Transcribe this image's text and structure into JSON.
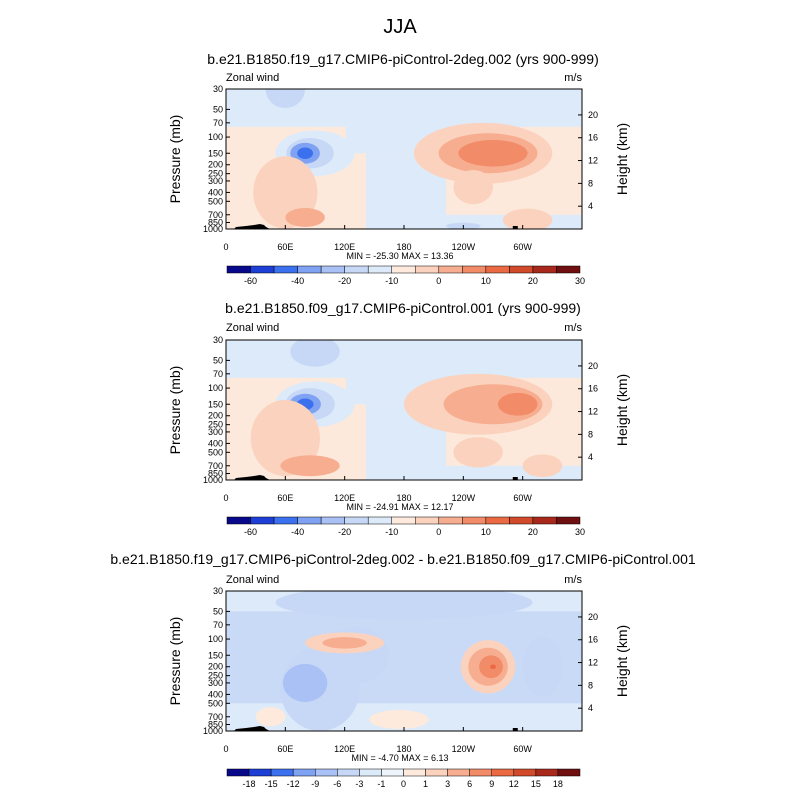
{
  "figure": {
    "title": "JJA"
  },
  "colors": {
    "palette_neg": [
      "#08088a",
      "#1d3fd6",
      "#3b70ee",
      "#7fa2f2",
      "#aac1f5",
      "#c7d8f7",
      "#ddeaf9"
    ],
    "palette_pos": [
      "#fdeadd",
      "#fbd2bd",
      "#f7ad90",
      "#f28b68",
      "#eb6a44",
      "#d14a2a",
      "#a8291c",
      "#6f0f0f"
    ],
    "background_band": "#fdeee2"
  },
  "chart_data": [
    {
      "type": "heatmap",
      "title": "b.e21.B1850.f19_g17.CMIP6-piControl-2deg.002 (yrs 900-999)",
      "left_label": "Zonal wind",
      "right_label": "m/s",
      "ylabel": "Pressure (mb)",
      "ylabel_right": "Height (km)",
      "x_ticks": [
        "0",
        "60E",
        "120E",
        "180",
        "120W",
        "60W"
      ],
      "y_ticks": [
        "30",
        "50",
        "70",
        "100",
        "150",
        "200",
        "250",
        "300",
        "400",
        "500",
        "700",
        "850",
        "1000"
      ],
      "y_ticks_right": [
        "20",
        "16",
        "12",
        "8",
        "4"
      ],
      "stats": "MIN = -25.30  MAX =  13.36",
      "min": -25.3,
      "max": 13.36,
      "colorbar_labels": [
        "-60",
        "-40",
        "-20",
        "-10",
        "0",
        "10",
        "20",
        "30"
      ],
      "background_level": 1,
      "features": [
        {
          "lon": 90,
          "lev": 150,
          "w": 80,
          "h": 1.2,
          "level": 6
        },
        {
          "lon": 85,
          "lev": 150,
          "w": 48,
          "h": 0.8,
          "level": 5
        },
        {
          "lon": 80,
          "lev": 150,
          "w": 30,
          "h": 0.55,
          "level": 3
        },
        {
          "lon": 80,
          "lev": 150,
          "w": 16,
          "h": 0.3,
          "level": 2
        },
        {
          "lon": 60,
          "lev": 30,
          "w": 40,
          "h": 1.0,
          "level": 5
        },
        {
          "lon": 260,
          "lev": 150,
          "w": 140,
          "h": 1.6,
          "level": 8
        },
        {
          "lon": 265,
          "lev": 150,
          "w": 100,
          "h": 1.05,
          "level": 9
        },
        {
          "lon": 270,
          "lev": 150,
          "w": 70,
          "h": 0.7,
          "level": 10
        },
        {
          "lon": 60,
          "lev": 400,
          "w": 65,
          "h": 1.9,
          "level": 8
        },
        {
          "lon": 80,
          "lev": 750,
          "w": 40,
          "h": 0.5,
          "level": 9
        },
        {
          "lon": 250,
          "lev": 350,
          "w": 40,
          "h": 0.9,
          "level": 8
        },
        {
          "lon": 240,
          "lev": 930,
          "w": 35,
          "h": 0.18,
          "level": 5
        },
        {
          "lon": 305,
          "lev": 800,
          "w": 50,
          "h": 0.6,
          "level": 8
        }
      ]
    },
    {
      "type": "heatmap",
      "title": "b.e21.B1850.f09_g17.CMIP6-piControl.001 (yrs 900-999)",
      "left_label": "Zonal wind",
      "right_label": "m/s",
      "ylabel": "Pressure (mb)",
      "ylabel_right": "Height (km)",
      "x_ticks": [
        "0",
        "60E",
        "120E",
        "180",
        "120W",
        "60W"
      ],
      "y_ticks": [
        "30",
        "50",
        "70",
        "100",
        "150",
        "200",
        "250",
        "300",
        "400",
        "500",
        "700",
        "850",
        "1000"
      ],
      "y_ticks_right": [
        "20",
        "16",
        "12",
        "8",
        "4"
      ],
      "stats": "MIN = -24.91  MAX =  12.17",
      "min": -24.91,
      "max": 12.17,
      "colorbar_labels": [
        "-60",
        "-40",
        "-20",
        "-10",
        "0",
        "10",
        "20",
        "30"
      ],
      "background_level": 1,
      "features": [
        {
          "lon": 90,
          "lev": 150,
          "w": 80,
          "h": 1.2,
          "level": 6
        },
        {
          "lon": 85,
          "lev": 150,
          "w": 50,
          "h": 0.85,
          "level": 5
        },
        {
          "lon": 80,
          "lev": 150,
          "w": 32,
          "h": 0.55,
          "level": 3
        },
        {
          "lon": 80,
          "lev": 150,
          "w": 17,
          "h": 0.3,
          "level": 2
        },
        {
          "lon": 90,
          "lev": 40,
          "w": 50,
          "h": 0.8,
          "level": 5
        },
        {
          "lon": 255,
          "lev": 150,
          "w": 150,
          "h": 1.6,
          "level": 8
        },
        {
          "lon": 270,
          "lev": 150,
          "w": 100,
          "h": 1.05,
          "level": 9
        },
        {
          "lon": 295,
          "lev": 150,
          "w": 40,
          "h": 0.6,
          "level": 10
        },
        {
          "lon": 60,
          "lev": 350,
          "w": 70,
          "h": 2.0,
          "level": 8
        },
        {
          "lon": 85,
          "lev": 700,
          "w": 60,
          "h": 0.55,
          "level": 9
        },
        {
          "lon": 255,
          "lev": 500,
          "w": 50,
          "h": 0.8,
          "level": 8
        },
        {
          "lon": 320,
          "lev": 700,
          "w": 40,
          "h": 0.6,
          "level": 8
        }
      ]
    },
    {
      "type": "heatmap",
      "title": "b.e21.B1850.f19_g17.CMIP6-piControl-2deg.002 - b.e21.B1850.f09_g17.CMIP6-piControl.001",
      "left_label": "Zonal wind",
      "right_label": "m/s",
      "ylabel": "Pressure (mb)",
      "ylabel_right": "Height (km)",
      "x_ticks": [
        "0",
        "60E",
        "120E",
        "180",
        "120W",
        "60W"
      ],
      "y_ticks": [
        "30",
        "50",
        "70",
        "100",
        "150",
        "200",
        "250",
        "300",
        "400",
        "500",
        "700",
        "850",
        "1000"
      ],
      "y_ticks_right": [
        "20",
        "16",
        "12",
        "8",
        "4"
      ],
      "stats": "MIN = -4.70  MAX =  6.13",
      "min": -4.7,
      "max": 6.13,
      "colorbar_labels": [
        "-18",
        "-15",
        "-12",
        "-9",
        "-6",
        "-3",
        "-1",
        "0",
        "1",
        "3",
        "6",
        "9",
        "12",
        "15",
        "18"
      ],
      "background_level": 6,
      "features": [
        {
          "lon": 180,
          "lev": 40,
          "w": 260,
          "h": 0.9,
          "level": 5
        },
        {
          "lon": 95,
          "lev": 350,
          "w": 80,
          "h": 2.2,
          "level": 5
        },
        {
          "lon": 80,
          "lev": 300,
          "w": 45,
          "h": 1.0,
          "level": 4
        },
        {
          "lon": 130,
          "lev": 150,
          "w": 70,
          "h": 1.5,
          "level": 5
        },
        {
          "lon": 320,
          "lev": 200,
          "w": 40,
          "h": 1.6,
          "level": 5
        },
        {
          "lon": 120,
          "lev": 110,
          "w": 80,
          "h": 0.55,
          "level": 8
        },
        {
          "lon": 120,
          "lev": 110,
          "w": 45,
          "h": 0.3,
          "level": 9
        },
        {
          "lon": 265,
          "lev": 200,
          "w": 55,
          "h": 1.4,
          "level": 8
        },
        {
          "lon": 265,
          "lev": 200,
          "w": 40,
          "h": 1.0,
          "level": 9
        },
        {
          "lon": 268,
          "lev": 200,
          "w": 24,
          "h": 0.6,
          "level": 10
        },
        {
          "lon": 270,
          "lev": 200,
          "w": 6,
          "h": 0.12,
          "level": 11
        },
        {
          "lon": 45,
          "lev": 700,
          "w": 30,
          "h": 0.5,
          "level": 7
        },
        {
          "lon": 175,
          "lev": 750,
          "w": 60,
          "h": 0.5,
          "level": 7
        }
      ]
    }
  ]
}
